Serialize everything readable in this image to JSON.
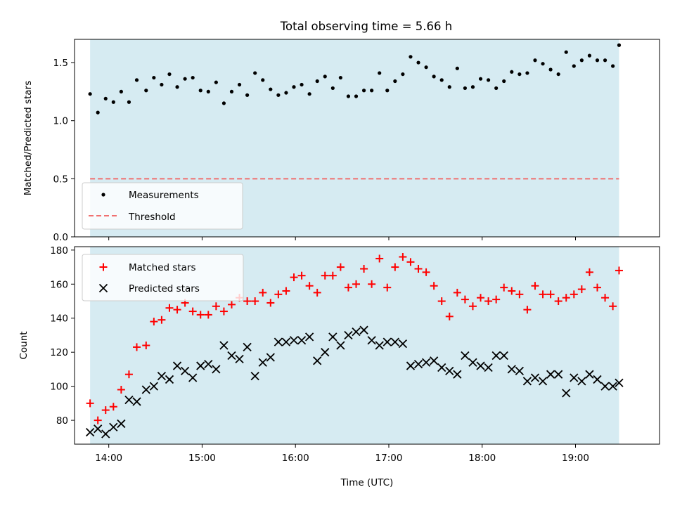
{
  "chart_data": [
    {
      "type": "scatter",
      "title": "Total observing time = 5.66 h",
      "xlabel": "",
      "ylabel": "Matched/Predicted stars",
      "xlim": [
        "13:38",
        "19:54"
      ],
      "ylim": [
        0,
        1.7
      ],
      "yticks": [
        "0.0",
        "0.5",
        "1.0",
        "1.5"
      ],
      "shaded_span": [
        "13:48",
        "19:28"
      ],
      "shade_color": "#add8e6",
      "legend_position": "lower-left",
      "x": [
        "13:48",
        "13:53",
        "13:58",
        "14:03",
        "14:08",
        "14:13",
        "14:18",
        "14:24",
        "14:29",
        "14:34",
        "14:39",
        "14:44",
        "14:49",
        "14:54",
        "14:59",
        "15:04",
        "15:09",
        "15:14",
        "15:19",
        "15:24",
        "15:29",
        "15:34",
        "15:39",
        "15:44",
        "15:49",
        "15:54",
        "15:59",
        "16:04",
        "16:09",
        "16:14",
        "16:19",
        "16:24",
        "16:29",
        "16:34",
        "16:39",
        "16:44",
        "16:49",
        "16:54",
        "16:59",
        "17:04",
        "17:09",
        "17:14",
        "17:19",
        "17:24",
        "17:29",
        "17:34",
        "17:39",
        "17:44",
        "17:49",
        "17:54",
        "17:59",
        "18:04",
        "18:09",
        "18:14",
        "18:19",
        "18:24",
        "18:29",
        "18:34",
        "18:39",
        "18:44",
        "18:49",
        "18:54",
        "18:59",
        "19:04",
        "19:09",
        "19:14",
        "19:19",
        "19:24",
        "19:28"
      ],
      "series": [
        {
          "name": "Measurements",
          "color": "#000000",
          "marker": "dot",
          "values": [
            1.23,
            1.07,
            1.19,
            1.16,
            1.25,
            1.16,
            1.35,
            1.26,
            1.37,
            1.31,
            1.4,
            1.29,
            1.36,
            1.37,
            1.26,
            1.25,
            1.33,
            1.15,
            1.25,
            1.31,
            1.22,
            1.41,
            1.35,
            1.27,
            1.22,
            1.24,
            1.29,
            1.31,
            1.23,
            1.34,
            1.38,
            1.28,
            1.37,
            1.21,
            1.21,
            1.26,
            1.26,
            1.41,
            1.26,
            1.34,
            1.4,
            1.55,
            1.5,
            1.46,
            1.38,
            1.35,
            1.29,
            1.45,
            1.28,
            1.29,
            1.36,
            1.35,
            1.28,
            1.34,
            1.42,
            1.4,
            1.41,
            1.52,
            1.49,
            1.44,
            1.4,
            1.59,
            1.47,
            1.52,
            1.56,
            1.52,
            1.52,
            1.47,
            1.65
          ]
        },
        {
          "name": "Threshold",
          "color": "#f07070",
          "style": "dashed",
          "values": [
            0.5
          ]
        }
      ]
    },
    {
      "type": "scatter",
      "title": "",
      "xlabel": "Time (UTC)",
      "ylabel": "Count",
      "xlim": [
        "13:38",
        "19:54"
      ],
      "xticks": [
        "14:00",
        "15:00",
        "16:00",
        "17:00",
        "18:00",
        "19:00"
      ],
      "ylim": [
        66,
        182
      ],
      "yticks": [
        "80",
        "100",
        "120",
        "140",
        "160",
        "180"
      ],
      "shaded_span": [
        "13:48",
        "19:28"
      ],
      "shade_color": "#add8e6",
      "legend_position": "upper-left",
      "x": [
        "13:48",
        "13:53",
        "13:58",
        "14:03",
        "14:08",
        "14:13",
        "14:18",
        "14:24",
        "14:29",
        "14:34",
        "14:39",
        "14:44",
        "14:49",
        "14:54",
        "14:59",
        "15:04",
        "15:09",
        "15:14",
        "15:19",
        "15:24",
        "15:29",
        "15:34",
        "15:39",
        "15:44",
        "15:49",
        "15:54",
        "15:59",
        "16:04",
        "16:09",
        "16:14",
        "16:19",
        "16:24",
        "16:29",
        "16:34",
        "16:39",
        "16:44",
        "16:49",
        "16:54",
        "16:59",
        "17:04",
        "17:09",
        "17:14",
        "17:19",
        "17:24",
        "17:29",
        "17:34",
        "17:39",
        "17:44",
        "17:49",
        "17:54",
        "17:59",
        "18:04",
        "18:09",
        "18:14",
        "18:19",
        "18:24",
        "18:29",
        "18:34",
        "18:39",
        "18:44",
        "18:49",
        "18:54",
        "18:59",
        "19:04",
        "19:09",
        "19:14",
        "19:19",
        "19:24",
        "19:28"
      ],
      "series": [
        {
          "name": "Matched stars",
          "color": "#ff0000",
          "marker": "plus",
          "values": [
            90,
            80,
            86,
            88,
            98,
            107,
            123,
            124,
            138,
            139,
            146,
            145,
            149,
            144,
            142,
            142,
            147,
            144,
            148,
            152,
            150,
            150,
            155,
            149,
            154,
            156,
            164,
            165,
            159,
            155,
            165,
            165,
            170,
            158,
            160,
            169,
            160,
            175,
            158,
            170,
            176,
            173,
            169,
            167,
            159,
            150,
            141,
            155,
            151,
            147,
            152,
            150,
            151,
            158,
            156,
            154,
            145,
            159,
            154,
            154,
            150,
            152,
            154,
            157,
            167,
            158,
            152,
            147,
            168
          ]
        },
        {
          "name": "Predicted stars",
          "color": "#000000",
          "marker": "x",
          "values": [
            73,
            75,
            72,
            76,
            78,
            92,
            91,
            98,
            100,
            106,
            104,
            112,
            109,
            105,
            112,
            113,
            110,
            124,
            118,
            116,
            123,
            106,
            114,
            117,
            126,
            126,
            127,
            127,
            129,
            115,
            120,
            129,
            124,
            130,
            132,
            133,
            127,
            124,
            126,
            126,
            125,
            112,
            113,
            114,
            115,
            111,
            109,
            107,
            118,
            114,
            112,
            111,
            118,
            118,
            110,
            109,
            103,
            105,
            103,
            107,
            107,
            96,
            105,
            103,
            107,
            104,
            100,
            100,
            102
          ]
        }
      ]
    }
  ]
}
